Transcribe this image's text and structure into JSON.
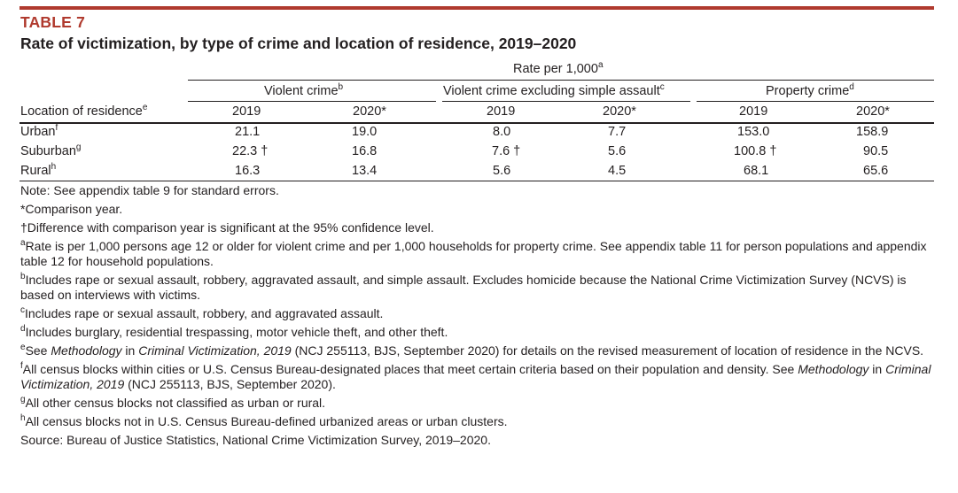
{
  "table_label": "TABLE 7",
  "title": "Rate of victimization, by type of crime and location of residence, 2019–2020",
  "header": {
    "rate_label": "Rate per 1,000",
    "rate_sup": "a",
    "groups": [
      {
        "label": "Violent crime",
        "sup": "b"
      },
      {
        "label": "Violent crime excluding simple assault",
        "sup": "c"
      },
      {
        "label": "Property crime",
        "sup": "d"
      }
    ],
    "row_header": "Location of residence",
    "row_header_sup": "e",
    "years": [
      "2019",
      "2020*",
      "2019",
      "2020*",
      "2019",
      "2020*"
    ]
  },
  "rows": [
    {
      "label": "Urban",
      "sup": "f",
      "values": [
        "21.1",
        "19.0",
        "8.0",
        "7.7",
        "153.0",
        "158.9"
      ]
    },
    {
      "label": "Suburban",
      "sup": "g",
      "values": [
        "22.3 †",
        "16.8",
        "7.6 †",
        "5.6",
        "100.8 †",
        "90.5"
      ]
    },
    {
      "label": "Rural",
      "sup": "h",
      "values": [
        "16.3",
        "13.4",
        "5.6",
        "4.5",
        "68.1",
        "65.6"
      ]
    }
  ],
  "notes": {
    "note": "Note: See appendix table 9 for standard errors.",
    "comparison": "*Comparison year.",
    "dagger": "†Difference with comparison year is significant at the 95% confidence level.",
    "a_sup": "a",
    "a": "Rate is per 1,000 persons age 12 or older for violent crime and per 1,000 households for property crime. See appendix table 11 for person populations and appendix table 12 for household populations.",
    "b_sup": "b",
    "b": "Includes rape or sexual assault, robbery, aggravated assault, and simple assault. Excludes homicide because the National Crime Victimization Survey (NCVS) is based on interviews with victims.",
    "c_sup": "c",
    "c": "Includes rape or sexual assault, robbery, and aggravated assault.",
    "d_sup": "d",
    "d": "Includes burglary, residential trespassing, motor vehicle theft, and other theft.",
    "e_sup": "e",
    "e_1": "See ",
    "e_2": "Methodology",
    "e_3": " in ",
    "e_4": "Criminal Victimization, 2019",
    "e_5": " (NCJ 255113, BJS, September 2020) for details on the revised measurement of location of residence in the NCVS.",
    "f_sup": "f",
    "f_1": "All census blocks within cities or U.S. Census Bureau-designated places that meet certain criteria based on their population and density. See ",
    "f_2": "Methodology",
    "f_3": " in ",
    "f_4": "Criminal Victimization, 2019",
    "f_5": " (NCJ 255113, BJS, September 2020).",
    "g_sup": "g",
    "g": "All other census blocks not classified as urban or rural.",
    "h_sup": "h",
    "h": "All census blocks not in U.S. Census Bureau-defined urbanized areas or urban clusters.",
    "source": "Source: Bureau of Justice Statistics, National Crime Victimization Survey, 2019–2020."
  }
}
